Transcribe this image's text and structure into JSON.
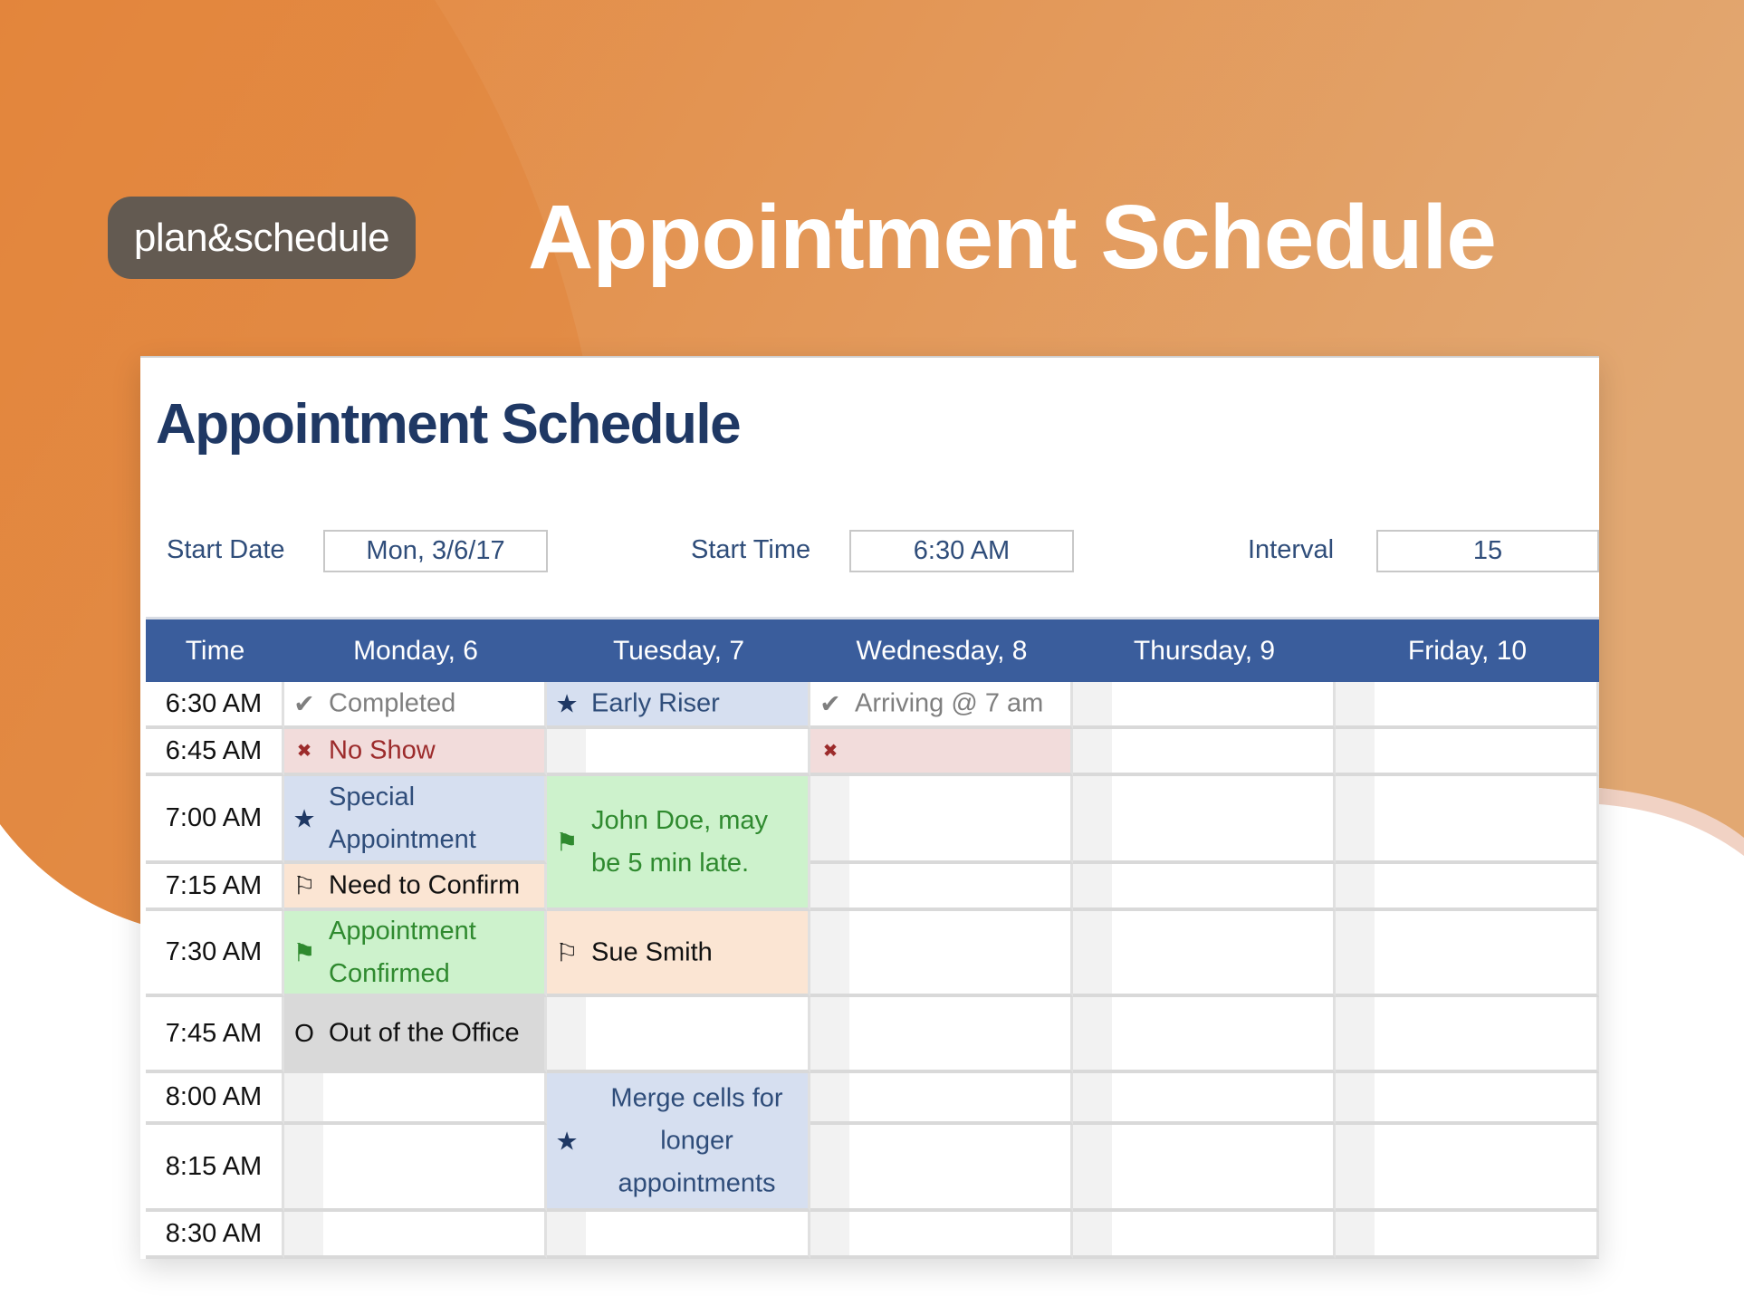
{
  "brand": {
    "badge": "plan&schedule",
    "headline": "Appointment Schedule",
    "colors": {
      "orange": "#e58a3e",
      "badge_bg": "#635a51"
    }
  },
  "sheet": {
    "title": "Appointment Schedule",
    "start_date": {
      "label": "Start Date",
      "value": "Mon, 3/6/17"
    },
    "start_time": {
      "label": "Start Time",
      "value": "6:30 AM"
    },
    "interval": {
      "label": "Interval",
      "value": "15"
    },
    "header_color": "#3a5d9c",
    "columns": [
      "Time",
      "Monday, 6",
      "Tuesday, 7",
      "Wednesday, 8",
      "Thursday, 9",
      "Friday, 10"
    ],
    "times": [
      "6:30 AM",
      "6:45 AM",
      "7:00 AM",
      "7:15 AM",
      "7:30 AM",
      "7:45 AM",
      "8:00 AM",
      "8:15 AM",
      "8:30 AM"
    ],
    "status_styles": {
      "completed": {
        "icon": "check-icon",
        "glyph": "✔",
        "bg": "#ffffff",
        "color": "#7f7f7f",
        "icon_color": "#7f7f7f"
      },
      "no-show": {
        "icon": "x-icon",
        "glyph": "✖",
        "bg": "#f2dcdb",
        "color": "#9c2b2b",
        "icon_color": "#9c2b2b"
      },
      "special": {
        "icon": "star-icon",
        "glyph": "★",
        "bg": "#d6dff0",
        "color": "#2f4d7a",
        "icon_color": "#1f3864"
      },
      "need-confirm": {
        "icon": "flag-outline-icon",
        "glyph": "⚐",
        "bg": "#fbe5d3",
        "color": "#111111",
        "icon_color": "#111111"
      },
      "confirmed": {
        "icon": "flag-filled-icon",
        "glyph": "⚑",
        "bg": "#cdf2cc",
        "color": "#2f8a2f",
        "icon_color": "#2f8a2f"
      },
      "out-of-office": {
        "icon": "circle-o-icon",
        "glyph": "O",
        "bg": "#d9d9d9",
        "color": "#111111",
        "icon_color": "#111111"
      }
    },
    "appointments": [
      {
        "day": 0,
        "row": 0,
        "span": 1,
        "status": "completed",
        "text": "Completed"
      },
      {
        "day": 0,
        "row": 1,
        "span": 1,
        "status": "no-show",
        "text": "No Show"
      },
      {
        "day": 0,
        "row": 2,
        "span": 1,
        "status": "special",
        "text": "Special Appointment"
      },
      {
        "day": 0,
        "row": 3,
        "span": 1,
        "status": "need-confirm",
        "text": "Need to Confirm"
      },
      {
        "day": 0,
        "row": 4,
        "span": 1,
        "status": "confirmed",
        "text": "Appointment Confirmed"
      },
      {
        "day": 0,
        "row": 5,
        "span": 1,
        "status": "out-of-office",
        "text": "Out of the Office"
      },
      {
        "day": 1,
        "row": 0,
        "span": 1,
        "status": "special",
        "text": "Early Riser"
      },
      {
        "day": 1,
        "row": 2,
        "span": 2,
        "status": "confirmed",
        "text": "John Doe, may be 5 min late."
      },
      {
        "day": 1,
        "row": 4,
        "span": 1,
        "status": "need-confirm",
        "text": "Sue Smith"
      },
      {
        "day": 1,
        "row": 6,
        "span": 2,
        "status": "special",
        "text": "Merge cells for longer appointments",
        "centered": true
      },
      {
        "day": 2,
        "row": 0,
        "span": 1,
        "status": "completed",
        "text": "Arriving @ 7 am"
      },
      {
        "day": 2,
        "row": 1,
        "span": 1,
        "status": "no-show",
        "text": ""
      }
    ]
  }
}
